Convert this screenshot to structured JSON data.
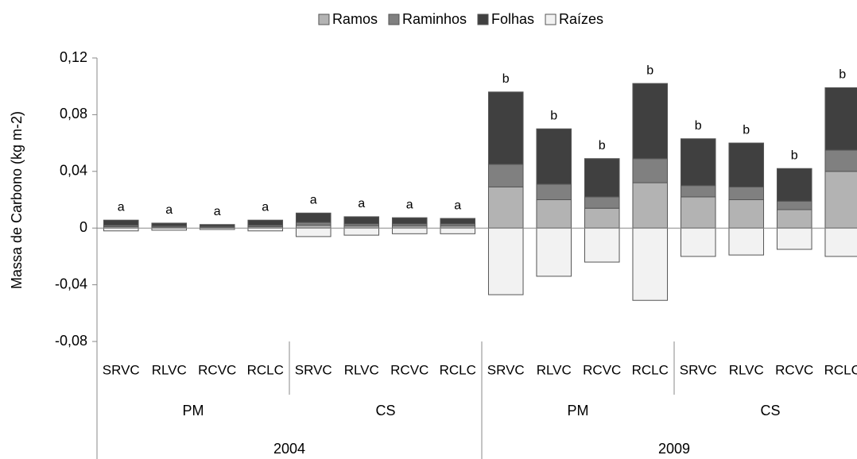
{
  "chart_data": {
    "type": "bar",
    "stacked": true,
    "ylabel": "Massa de Carbono (kg m-2)",
    "categories": [
      "SRVC",
      "RLVC",
      "RCVC",
      "RCLC",
      "SRVC",
      "RLVC",
      "RCVC",
      "RCLC",
      "SRVC",
      "RLVC",
      "RCVC",
      "RCLC",
      "SRVC",
      "RLVC",
      "RCVC",
      "RCLC"
    ],
    "groups": [
      "PM",
      "CS",
      "PM",
      "CS"
    ],
    "years": [
      "2004",
      "2009"
    ],
    "annotations": [
      "a",
      "a",
      "a",
      "a",
      "a",
      "a",
      "a",
      "a",
      "b",
      "b",
      "b",
      "b",
      "b",
      "b",
      "b",
      "b"
    ],
    "series": [
      {
        "name": "Ramos",
        "color": "#b3b3b3",
        "values": [
          0.001,
          0.0008,
          0.0006,
          0.001,
          0.002,
          0.0015,
          0.0015,
          0.0015,
          0.029,
          0.02,
          0.014,
          0.032,
          0.022,
          0.02,
          0.013,
          0.04
        ]
      },
      {
        "name": "Raminhos",
        "color": "#808080",
        "values": [
          0.001,
          0.0007,
          0.0005,
          0.001,
          0.002,
          0.0015,
          0.0015,
          0.0015,
          0.016,
          0.011,
          0.008,
          0.017,
          0.008,
          0.009,
          0.006,
          0.015
        ]
      },
      {
        "name": "Folhas",
        "color": "#404040",
        "values": [
          0.0036,
          0.002,
          0.0014,
          0.0036,
          0.0066,
          0.005,
          0.0043,
          0.0038,
          0.051,
          0.039,
          0.027,
          0.053,
          0.033,
          0.031,
          0.023,
          0.044
        ]
      },
      {
        "name": "Raízes",
        "color": "#f2f2f2",
        "values": [
          -0.002,
          -0.0015,
          -0.001,
          -0.002,
          -0.006,
          -0.005,
          -0.004,
          -0.004,
          -0.047,
          -0.034,
          -0.024,
          -0.051,
          -0.02,
          -0.019,
          -0.015,
          -0.02
        ]
      }
    ],
    "ylim": [
      -0.08,
      0.12
    ],
    "yticks": [
      {
        "value": -0.08,
        "label": "-0,08"
      },
      {
        "value": -0.04,
        "label": "-0,04"
      },
      0,
      {
        "value": 0.04,
        "label": "0,04"
      },
      {
        "value": 0.08,
        "label": "0,08"
      },
      {
        "value": 0.12,
        "label": "0,12"
      }
    ],
    "legend": "top"
  }
}
